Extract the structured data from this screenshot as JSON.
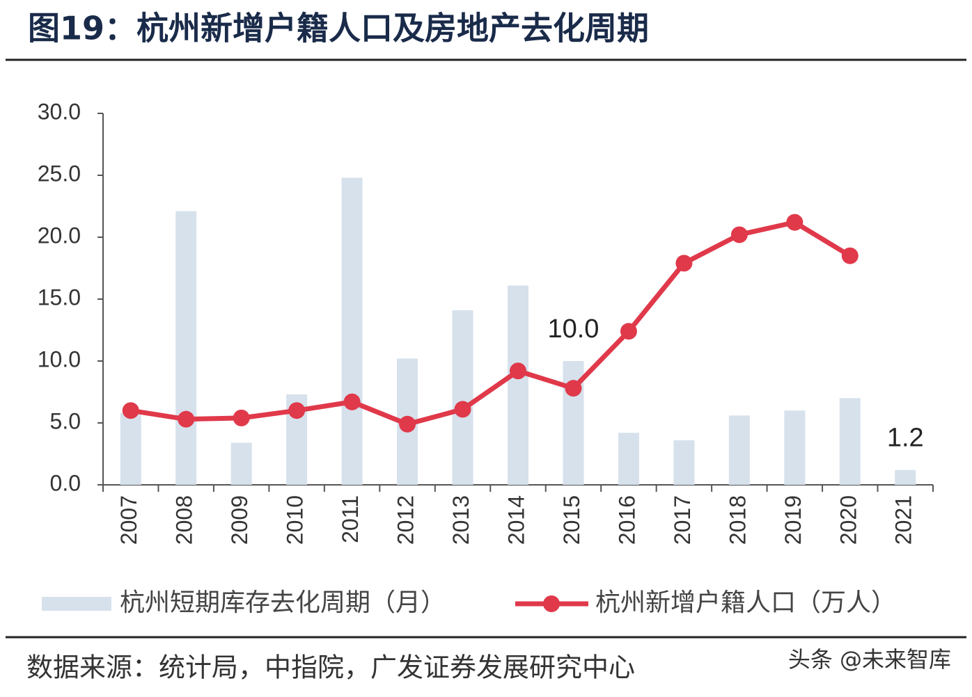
{
  "chart_data": {
    "type": "bar-line",
    "title": "图19：杭州新增户籍人口及房地产去化周期",
    "source": "数据来源：统计局，中指院，广发证券发展研究中心",
    "watermark": "头条 @未来智库",
    "categories": [
      "2007",
      "2008",
      "2009",
      "2010",
      "2011",
      "2012",
      "2013",
      "2014",
      "2015",
      "2016",
      "2017",
      "2018",
      "2019",
      "2020",
      "2021"
    ],
    "series": [
      {
        "name": "杭州短期库存去化周期（月）",
        "type": "bar",
        "color": "#d6e1ec",
        "values": [
          5.8,
          22.1,
          3.4,
          7.3,
          24.8,
          10.2,
          14.1,
          16.1,
          10.0,
          4.2,
          3.6,
          5.6,
          6.0,
          7.0,
          1.2
        ],
        "value_labels": [
          null,
          null,
          null,
          null,
          null,
          null,
          null,
          null,
          "10.0",
          null,
          null,
          null,
          null,
          null,
          "1.2"
        ]
      },
      {
        "name": "杭州新增户籍人口（万人）",
        "type": "line",
        "color": "#e0394a",
        "values": [
          6.0,
          5.3,
          5.4,
          6.0,
          6.7,
          4.9,
          6.1,
          9.2,
          7.8,
          12.4,
          17.9,
          20.2,
          21.2,
          18.5,
          null
        ]
      }
    ],
    "ylim": [
      0,
      30
    ],
    "yticks": [
      {
        "value": 0,
        "label": "0.0"
      },
      {
        "value": 5,
        "label": "5.0"
      },
      {
        "value": 10,
        "label": "10.0"
      },
      {
        "value": 15,
        "label": "15.0"
      },
      {
        "value": 20,
        "label": "20.0"
      },
      {
        "value": 25,
        "label": "25.0"
      },
      {
        "value": 30,
        "label": "30.0"
      }
    ],
    "legend": "bottom"
  }
}
